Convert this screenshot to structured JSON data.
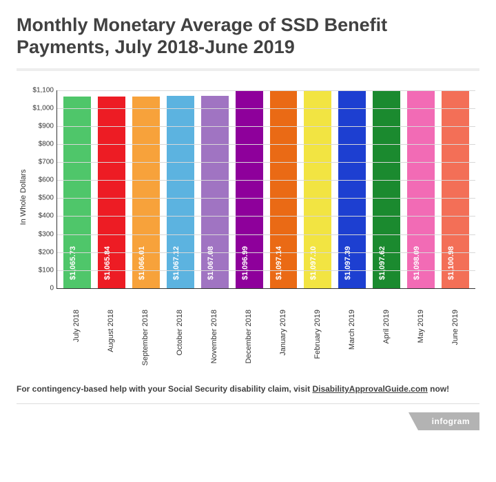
{
  "title": "Monthly Monetary Average of SSD Benefit Payments, July 2018-June 2019",
  "chart": {
    "type": "bar",
    "y_label": "In Whole Dollars",
    "ylim": [
      0,
      1100
    ],
    "ytick_step": 100,
    "ytick_prefix": "$",
    "grid_color": "#d8d8d8",
    "axis_color": "#333333",
    "background_color": "#ffffff",
    "label_fontsize": 11,
    "value_label_color": "#ffffff",
    "bars": [
      {
        "category": "July 2018",
        "value": 1065.73,
        "label": "$1,065.73",
        "color": "#4fc66a"
      },
      {
        "category": "August 2018",
        "value": 1065.84,
        "label": "$1,065.84",
        "color": "#ed1c24"
      },
      {
        "category": "September 2018",
        "value": 1066.01,
        "label": "$1,066.01",
        "color": "#f7a23b"
      },
      {
        "category": "October 2018",
        "value": 1067.12,
        "label": "$1,067.12",
        "color": "#5cb3e0"
      },
      {
        "category": "November 2018",
        "value": 1067.08,
        "label": "$1,067.08",
        "color": "#a074c2"
      },
      {
        "category": "December 2018",
        "value": 1096.99,
        "label": "$1,096.99",
        "color": "#8e009b"
      },
      {
        "category": "January 2019",
        "value": 1097.14,
        "label": "$1,097.14",
        "color": "#ea6a15"
      },
      {
        "category": "February 2019",
        "value": 1097.1,
        "label": "$1,097.10",
        "color": "#f2e442"
      },
      {
        "category": "March 2019",
        "value": 1097.39,
        "label": "$1,097.39",
        "color": "#1d3fd1"
      },
      {
        "category": "April 2019",
        "value": 1097.62,
        "label": "$1,097.62",
        "color": "#1b8a2f"
      },
      {
        "category": "May 2019",
        "value": 1098.09,
        "label": "$1,098.09",
        "color": "#f26bb5"
      },
      {
        "category": "June 2019",
        "value": 1100.98,
        "label": "$1,100.98",
        "color": "#f36f57"
      }
    ]
  },
  "footer": {
    "prefix": "For contingency-based help with your Social Security disability claim, visit ",
    "link_text": "DisabilityApprovalGuide.com",
    "suffix": " now!"
  },
  "brand": "infogram"
}
